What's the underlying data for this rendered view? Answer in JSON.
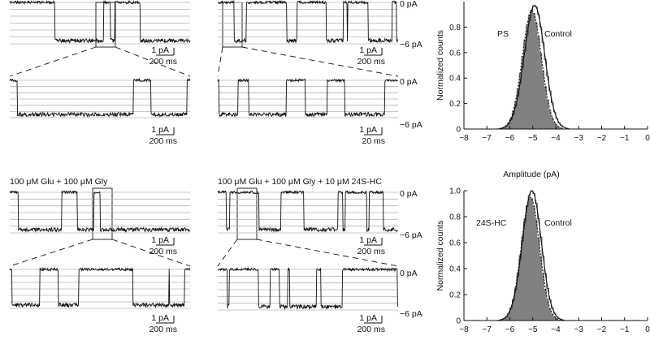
{
  "traces": [
    {
      "condition": "",
      "open_label": "0 pA",
      "closed_label": "−6 pA",
      "scale_current": "1 pA",
      "scale_time": "200 ms"
    },
    {
      "condition": "",
      "open_label": "0 pA",
      "closed_label": "−6 pA",
      "scale_current": "1 pA",
      "scale_time": "200 ms"
    },
    {
      "condition": "",
      "open_label": "0 pA",
      "closed_label": "−6 pA",
      "scale_current": "1 pA",
      "scale_time": "200 ms"
    },
    {
      "condition": "",
      "open_label": "0 pA",
      "closed_label": "−6 pA",
      "scale_current": "1 pA",
      "scale_time": "20 ms"
    },
    {
      "condition": "100 μM Glu + 100 μM Gly",
      "open_label": "",
      "closed_label": "",
      "scale_current": "1 pA",
      "scale_time": "200 ms"
    },
    {
      "condition": "100 μM Glu + 100 μM Gly + 10 μM 24S-HC",
      "open_label": "0 pA",
      "closed_label": "−6 pA",
      "scale_current": "1 pA",
      "scale_time": "200 ms"
    },
    {
      "condition": "",
      "open_label": "",
      "closed_label": "",
      "scale_current": "1 pA",
      "scale_time": "200 ms"
    },
    {
      "condition": "",
      "open_label": "0 pA",
      "closed_label": "−6 pA",
      "scale_current": "1 pA",
      "scale_time": "200 ms"
    }
  ],
  "chart_data": [
    {
      "type": "area",
      "title": "",
      "xlabel": "Amplitude (pA)",
      "ylabel": "Normalized counts",
      "xlim": [
        -8,
        0
      ],
      "ylim": [
        0,
        1.0
      ],
      "xticks": [
        "−8",
        "−7",
        "−6",
        "−5",
        "−4",
        "−3",
        "−2",
        "−1",
        "0"
      ],
      "yticks": [
        "0",
        "0.2",
        "0.4",
        "0.6",
        "0.8"
      ],
      "grid": false,
      "annotations": [
        "PS",
        "Control"
      ],
      "series": [
        {
          "name": "PS",
          "style": "filled histogram",
          "mean": -5.1,
          "sd": 0.42,
          "skew": 0.25,
          "peak": 0.93
        },
        {
          "name": "Control",
          "style": "open histogram with fit",
          "mean": -5.0,
          "sd": 0.45,
          "skew": 0.3,
          "peak": 0.97
        }
      ]
    },
    {
      "type": "area",
      "title": "",
      "xlabel": "",
      "ylabel": "Normalized counts",
      "xlim": [
        -8,
        0
      ],
      "ylim": [
        0,
        1.0
      ],
      "xticks": [
        "−8",
        "−7",
        "−6",
        "−5",
        "−4",
        "−3",
        "−2",
        "−1",
        "0"
      ],
      "yticks": [
        "0",
        "0.2",
        "0.4",
        "0.6",
        "0.8",
        "1.0"
      ],
      "grid": false,
      "annotations": [
        "24S-HC",
        "Control"
      ],
      "series": [
        {
          "name": "24S-HC",
          "style": "filled histogram",
          "mean": -5.15,
          "sd": 0.4,
          "skew": 0.2,
          "peak": 0.95
        },
        {
          "name": "Control",
          "style": "open histogram with fit",
          "mean": -5.1,
          "sd": 0.42,
          "skew": 0.25,
          "peak": 1.0
        }
      ]
    }
  ],
  "colors": {
    "fill": "#808080",
    "trace": "#111111",
    "grid": "#b4b4b4"
  }
}
